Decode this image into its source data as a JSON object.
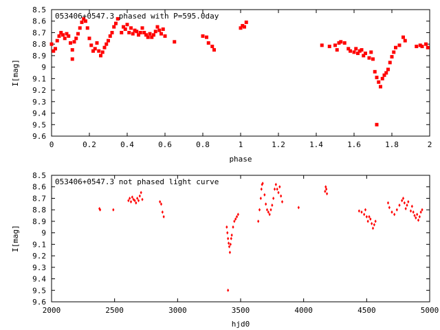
{
  "chart_data": [
    {
      "type": "scatter",
      "title": "053406+0547.3 phased with P=595.0day",
      "xlabel": "phase",
      "ylabel": "I[mag]",
      "xlim": [
        0,
        2
      ],
      "ylim": [
        9.6,
        8.5
      ],
      "y_inverted": true,
      "marker_color": "#ff0000",
      "marker": "filled-square",
      "x_ticks": [
        "0",
        "0.2",
        "0.4",
        "0.6",
        "0.8",
        "1",
        "1.2",
        "1.4",
        "1.6",
        "1.8",
        "2"
      ],
      "y_ticks": [
        "8.5",
        "8.6",
        "8.7",
        "8.8",
        "8.9",
        "9",
        "9.1",
        "9.2",
        "9.3",
        "9.4",
        "9.5",
        "9.6"
      ],
      "points": [
        [
          0.0,
          8.8
        ],
        [
          0.01,
          8.86
        ],
        [
          0.02,
          8.84
        ],
        [
          0.03,
          8.77
        ],
        [
          0.04,
          8.73
        ],
        [
          0.05,
          8.7
        ],
        [
          0.06,
          8.72
        ],
        [
          0.07,
          8.75
        ],
        [
          0.08,
          8.71
        ],
        [
          0.09,
          8.73
        ],
        [
          0.1,
          8.79
        ],
        [
          0.11,
          8.85
        ],
        [
          0.11,
          8.93
        ],
        [
          0.12,
          8.78
        ],
        [
          0.13,
          8.75
        ],
        [
          0.14,
          8.71
        ],
        [
          0.15,
          8.66
        ],
        [
          0.16,
          8.61
        ],
        [
          0.17,
          8.58
        ],
        [
          0.18,
          8.6
        ],
        [
          0.19,
          8.66
        ],
        [
          0.2,
          8.75
        ],
        [
          0.21,
          8.81
        ],
        [
          0.22,
          8.86
        ],
        [
          0.23,
          8.84
        ],
        [
          0.24,
          8.79
        ],
        [
          0.25,
          8.86
        ],
        [
          0.26,
          8.9
        ],
        [
          0.27,
          8.87
        ],
        [
          0.28,
          8.83
        ],
        [
          0.29,
          8.8
        ],
        [
          0.3,
          8.77
        ],
        [
          0.31,
          8.73
        ],
        [
          0.32,
          8.7
        ],
        [
          0.33,
          8.65
        ],
        [
          0.34,
          8.62
        ],
        [
          0.35,
          8.58
        ],
        [
          0.37,
          8.7
        ],
        [
          0.38,
          8.65
        ],
        [
          0.39,
          8.67
        ],
        [
          0.4,
          8.63
        ],
        [
          0.41,
          8.7
        ],
        [
          0.42,
          8.66
        ],
        [
          0.43,
          8.71
        ],
        [
          0.44,
          8.68
        ],
        [
          0.45,
          8.69
        ],
        [
          0.46,
          8.72
        ],
        [
          0.47,
          8.7
        ],
        [
          0.48,
          8.66
        ],
        [
          0.49,
          8.7
        ],
        [
          0.5,
          8.72
        ],
        [
          0.51,
          8.74
        ],
        [
          0.52,
          8.71
        ],
        [
          0.53,
          8.74
        ],
        [
          0.54,
          8.72
        ],
        [
          0.55,
          8.69
        ],
        [
          0.56,
          8.65
        ],
        [
          0.57,
          8.68
        ],
        [
          0.58,
          8.71
        ],
        [
          0.59,
          8.67
        ],
        [
          0.6,
          8.73
        ],
        [
          0.65,
          8.78
        ],
        [
          0.8,
          8.73
        ],
        [
          0.82,
          8.74
        ],
        [
          0.83,
          8.79
        ],
        [
          0.85,
          8.82
        ],
        [
          0.86,
          8.85
        ],
        [
          1.0,
          8.66
        ],
        [
          1.01,
          8.64
        ],
        [
          1.02,
          8.65
        ],
        [
          1.03,
          8.61
        ],
        [
          1.43,
          8.81
        ],
        [
          1.47,
          8.82
        ],
        [
          1.5,
          8.81
        ],
        [
          1.51,
          8.85
        ],
        [
          1.52,
          8.79
        ],
        [
          1.53,
          8.78
        ],
        [
          1.55,
          8.79
        ],
        [
          1.57,
          8.84
        ],
        [
          1.58,
          8.86
        ],
        [
          1.6,
          8.87
        ],
        [
          1.61,
          8.84
        ],
        [
          1.62,
          8.88
        ],
        [
          1.63,
          8.86
        ],
        [
          1.64,
          8.85
        ],
        [
          1.65,
          8.9
        ],
        [
          1.66,
          8.88
        ],
        [
          1.68,
          8.92
        ],
        [
          1.69,
          8.87
        ],
        [
          1.7,
          8.93
        ],
        [
          1.71,
          9.04
        ],
        [
          1.72,
          9.09
        ],
        [
          1.72,
          9.5
        ],
        [
          1.73,
          9.13
        ],
        [
          1.74,
          9.17
        ],
        [
          1.75,
          9.1
        ],
        [
          1.76,
          9.07
        ],
        [
          1.77,
          9.05
        ],
        [
          1.78,
          9.02
        ],
        [
          1.79,
          8.96
        ],
        [
          1.8,
          8.91
        ],
        [
          1.81,
          8.87
        ],
        [
          1.82,
          8.83
        ],
        [
          1.84,
          8.81
        ],
        [
          1.86,
          8.74
        ],
        [
          1.87,
          8.77
        ],
        [
          1.93,
          8.82
        ],
        [
          1.95,
          8.81
        ],
        [
          1.96,
          8.82
        ],
        [
          1.98,
          8.8
        ],
        [
          1.99,
          8.83
        ]
      ]
    },
    {
      "type": "scatter",
      "title": "053406+0547.3 not phased light curve",
      "xlabel": "hjd0",
      "ylabel": "I[mag]",
      "xlim": [
        2000,
        5000
      ],
      "ylim": [
        9.6,
        8.5
      ],
      "y_inverted": true,
      "marker_color": "#ff0000",
      "marker": "small-diamond",
      "x_ticks": [
        "2000",
        "2500",
        "3000",
        "3500",
        "4000",
        "4500",
        "5000"
      ],
      "y_ticks": [
        "8.5",
        "8.6",
        "8.7",
        "8.8",
        "8.9",
        "9",
        "9.1",
        "9.2",
        "9.3",
        "9.4",
        "9.5",
        "9.6"
      ],
      "points": [
        [
          2380,
          8.79
        ],
        [
          2385,
          8.8
        ],
        [
          2490,
          8.8
        ],
        [
          2610,
          8.72
        ],
        [
          2620,
          8.7
        ],
        [
          2630,
          8.73
        ],
        [
          2640,
          8.69
        ],
        [
          2650,
          8.71
        ],
        [
          2660,
          8.72
        ],
        [
          2670,
          8.74
        ],
        [
          2680,
          8.7
        ],
        [
          2690,
          8.72
        ],
        [
          2700,
          8.68
        ],
        [
          2710,
          8.65
        ],
        [
          2720,
          8.71
        ],
        [
          2860,
          8.73
        ],
        [
          2870,
          8.75
        ],
        [
          2880,
          8.82
        ],
        [
          2890,
          8.86
        ],
        [
          3390,
          8.95
        ],
        [
          3395,
          9.0
        ],
        [
          3400,
          9.05
        ],
        [
          3405,
          9.09
        ],
        [
          3410,
          9.12
        ],
        [
          3415,
          9.17
        ],
        [
          3420,
          9.1
        ],
        [
          3425,
          9.05
        ],
        [
          3430,
          9.02
        ],
        [
          3440,
          8.95
        ],
        [
          3450,
          8.9
        ],
        [
          3460,
          8.88
        ],
        [
          3470,
          8.86
        ],
        [
          3480,
          8.84
        ],
        [
          3400,
          9.5
        ],
        [
          3640,
          8.9
        ],
        [
          3650,
          8.8
        ],
        [
          3660,
          8.7
        ],
        [
          3665,
          8.62
        ],
        [
          3670,
          8.58
        ],
        [
          3675,
          8.57
        ],
        [
          3690,
          8.67
        ],
        [
          3700,
          8.75
        ],
        [
          3710,
          8.8
        ],
        [
          3720,
          8.82
        ],
        [
          3730,
          8.84
        ],
        [
          3740,
          8.8
        ],
        [
          3750,
          8.76
        ],
        [
          3760,
          8.7
        ],
        [
          3770,
          8.62
        ],
        [
          3780,
          8.58
        ],
        [
          3790,
          8.62
        ],
        [
          3800,
          8.65
        ],
        [
          3810,
          8.6
        ],
        [
          3820,
          8.68
        ],
        [
          3830,
          8.73
        ],
        [
          3960,
          8.78
        ],
        [
          4170,
          8.64
        ],
        [
          4175,
          8.6
        ],
        [
          4180,
          8.62
        ],
        [
          4185,
          8.66
        ],
        [
          4440,
          8.81
        ],
        [
          4460,
          8.82
        ],
        [
          4480,
          8.84
        ],
        [
          4490,
          8.8
        ],
        [
          4500,
          8.86
        ],
        [
          4510,
          8.9
        ],
        [
          4520,
          8.86
        ],
        [
          4530,
          8.88
        ],
        [
          4540,
          8.92
        ],
        [
          4550,
          8.96
        ],
        [
          4560,
          8.93
        ],
        [
          4570,
          8.9
        ],
        [
          4670,
          8.74
        ],
        [
          4680,
          8.78
        ],
        [
          4700,
          8.82
        ],
        [
          4720,
          8.84
        ],
        [
          4740,
          8.8
        ],
        [
          4760,
          8.76
        ],
        [
          4780,
          8.72
        ],
        [
          4790,
          8.7
        ],
        [
          4800,
          8.74
        ],
        [
          4810,
          8.79
        ],
        [
          4820,
          8.76
        ],
        [
          4830,
          8.73
        ],
        [
          4850,
          8.81
        ],
        [
          4860,
          8.77
        ],
        [
          4870,
          8.82
        ],
        [
          4880,
          8.85
        ],
        [
          4890,
          8.87
        ],
        [
          4900,
          8.84
        ],
        [
          4910,
          8.89
        ],
        [
          4920,
          8.86
        ],
        [
          4930,
          8.82
        ],
        [
          4940,
          8.8
        ]
      ]
    }
  ]
}
